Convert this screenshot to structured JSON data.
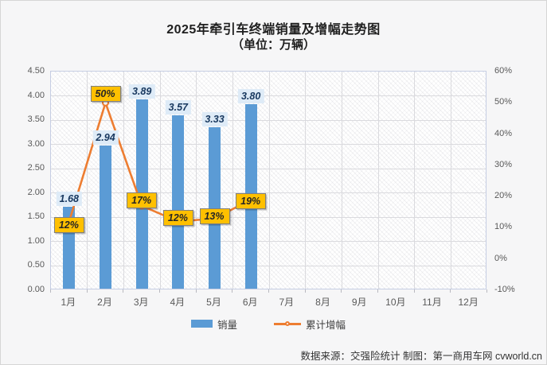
{
  "title": "2025年牵引车终端销量及增幅走势图",
  "subtitle": "（单位：万辆）",
  "footer": "数据来源：交强险统计  制图：第一商用车网 cvworld.cn",
  "legend": {
    "items": [
      {
        "label": "销量",
        "type": "bar"
      },
      {
        "label": "累计增幅",
        "type": "line"
      }
    ]
  },
  "colors": {
    "bar": "#5B9BD5",
    "line": "#ED7D31",
    "marker_fill": "#FFFFFF",
    "pct_label_bg": "#FFC000",
    "pct_label_border": "#7F7F7F",
    "value_label_bg": "#DEEBF7",
    "value_label_text": "#17375E"
  },
  "chart_data": {
    "type": "bar",
    "title": "2025年牵引车终端销量及增幅走势图（单位：万辆）",
    "categories": [
      "1月",
      "2月",
      "3月",
      "4月",
      "5月",
      "6月",
      "7月",
      "8月",
      "9月",
      "10月",
      "11月",
      "12月"
    ],
    "series": [
      {
        "name": "销量",
        "type": "bar",
        "axis": "left",
        "values": [
          1.68,
          2.94,
          3.89,
          3.57,
          3.33,
          3.8,
          null,
          null,
          null,
          null,
          null,
          null
        ],
        "labels": [
          "1.68",
          "2.94",
          "3.89",
          "3.57",
          "3.33",
          "3.80"
        ]
      },
      {
        "name": "累计增幅",
        "type": "line",
        "axis": "right",
        "unit": "%",
        "values": [
          12,
          50,
          17,
          12,
          13,
          19,
          null,
          null,
          null,
          null,
          null,
          null
        ],
        "labels": [
          "12%",
          "50%",
          "17%",
          "12%",
          "13%",
          "19%"
        ],
        "label_dy": [
          4,
          -11,
          -7,
          -5,
          -3,
          2
        ]
      }
    ],
    "left_axis": {
      "min": 0,
      "max": 4.5,
      "step": 0.5,
      "tick_labels": [
        "4.50",
        "4.00",
        "3.50",
        "3.00",
        "2.50",
        "2.00",
        "1.50",
        "1.00",
        "0.50",
        "0.00"
      ]
    },
    "right_axis": {
      "min": -10,
      "max": 60,
      "step": 10,
      "tick_labels": [
        "60%",
        "50%",
        "40%",
        "30%",
        "20%",
        "10%",
        "0%",
        "-10%"
      ]
    },
    "grid": true,
    "legend_position": "bottom"
  }
}
